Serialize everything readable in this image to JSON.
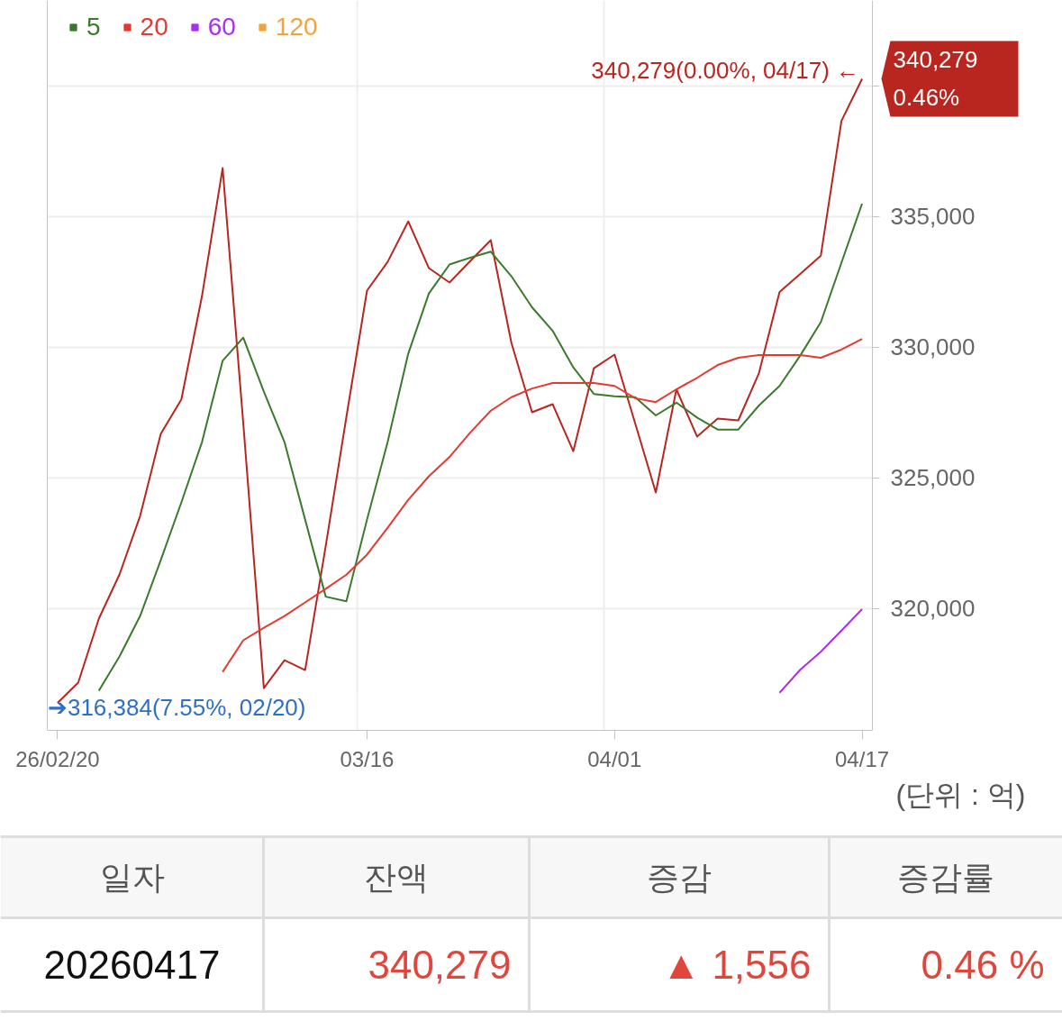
{
  "chart_data": [
    {
      "type": "line",
      "categories": [
        "26/02/20",
        null,
        null,
        null,
        null,
        null,
        null,
        null,
        null,
        null,
        null,
        null,
        null,
        null,
        null,
        "03/16",
        null,
        null,
        null,
        null,
        null,
        null,
        null,
        null,
        null,
        null,
        null,
        "04/01",
        null,
        null,
        null,
        null,
        null,
        null,
        null,
        null,
        null,
        null,
        null,
        "04/17"
      ],
      "series": [
        {
          "color": "#b8261f",
          "values": [
            316384,
            317160,
            319610,
            321300,
            323540,
            326680,
            328000,
            331960,
            336860,
            327100,
            316950,
            318020,
            317640,
            322400,
            327330,
            332170,
            333270,
            334820,
            333030,
            332480,
            333300,
            334100,
            330170,
            327510,
            327820,
            326020,
            329200,
            329720,
            327090,
            324440,
            328390,
            326580,
            327270,
            327200,
            329010,
            332120,
            332810,
            333510,
            338670,
            340279
          ]
        },
        {
          "name": "5",
          "color": "#3b7a2c",
          "values": [
            null,
            null,
            316850,
            318160,
            319710,
            321850,
            324060,
            326370,
            329480,
            330370,
            328300,
            326370,
            323400,
            320450,
            320270,
            323400,
            326370,
            329760,
            332060,
            333170,
            333430,
            333660,
            332720,
            331530,
            330630,
            329230,
            328210,
            328120,
            328090,
            327390,
            327880,
            327310,
            326850,
            326850,
            327770,
            328520,
            329680,
            330960,
            333240,
            335500
          ]
        },
        {
          "name": "20",
          "color": "#e53a31",
          "values": [
            null,
            null,
            null,
            null,
            null,
            null,
            null,
            null,
            317570,
            318780,
            319260,
            319710,
            320230,
            320750,
            321290,
            322060,
            323090,
            324160,
            325060,
            325800,
            326730,
            327570,
            328090,
            328420,
            328630,
            328630,
            328630,
            328520,
            328050,
            327900,
            328390,
            328830,
            329320,
            329600,
            329700,
            329700,
            329700,
            329600,
            329910,
            330320
          ]
        },
        {
          "name": "60",
          "color": "#a92ff0",
          "values": [
            null,
            null,
            null,
            null,
            null,
            null,
            null,
            null,
            null,
            null,
            null,
            null,
            null,
            null,
            null,
            null,
            null,
            null,
            null,
            null,
            null,
            null,
            null,
            null,
            null,
            null,
            null,
            null,
            null,
            null,
            null,
            null,
            null,
            null,
            null,
            316770,
            317650,
            318340,
            319150,
            319970
          ]
        },
        {
          "name": "120",
          "color": "#f2a33c",
          "values": [
            null,
            null,
            null,
            null,
            null,
            null,
            null,
            null,
            null,
            null,
            null,
            null,
            null,
            null,
            null,
            null,
            null,
            null,
            null,
            null,
            null,
            null,
            null,
            null,
            null,
            null,
            null,
            null,
            null,
            null,
            null,
            null,
            null,
            null,
            null,
            null,
            null,
            null,
            null,
            null
          ]
        }
      ],
      "ylim": [
        315330,
        343280
      ],
      "yticks": [
        {
          "value": 320000,
          "label": "320,000"
        },
        {
          "value": 325000,
          "label": "325,000"
        },
        {
          "value": 330000,
          "label": "330,000"
        },
        {
          "value": 335000,
          "label": "335,000"
        },
        {
          "value": 340000,
          "label": null
        }
      ],
      "ylabel": "(단위 : 억)",
      "grid": true,
      "legend": "top left",
      "annotations": [
        {
          "text": "340,279(0.00%, 04/17) ←",
          "x": "04/17",
          "y": 340279
        },
        {
          "text": "➔316,384(7.55%, 02/20)",
          "x": "26/02/20",
          "y": 316384
        },
        "340,279",
        "0.46%"
      ]
    },
    {
      "type": "other",
      "categories": [
        "일자",
        "잔액",
        "증감",
        "증감률"
      ],
      "value_labels": [
        "20260417",
        "340,279",
        "▲ 1,556",
        "0.46 %"
      ]
    }
  ]
}
